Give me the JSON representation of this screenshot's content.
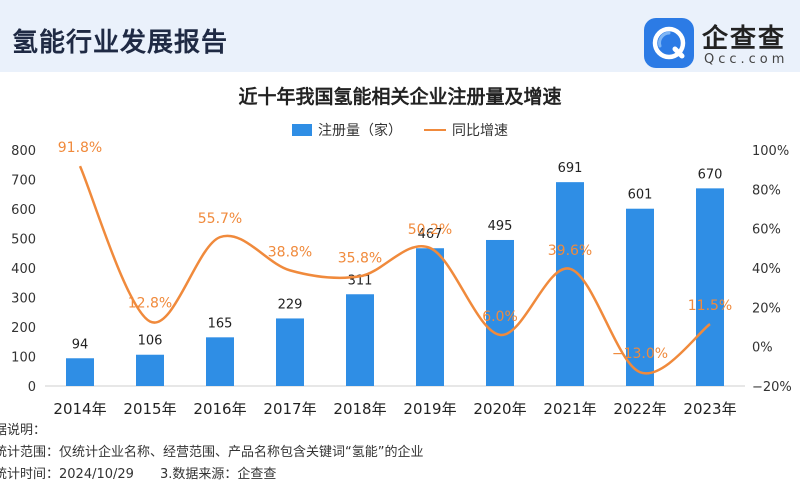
{
  "header": {
    "report_title": "氢能行业发展报告",
    "brand_name": "企查查",
    "brand_domain": "Qcc.com"
  },
  "colors": {
    "bar": "#2f8ee5",
    "line": "#f08a3c",
    "header_bg": "#eaf1fb",
    "brand": "#2c7be5"
  },
  "chart_data": {
    "type": "bar",
    "title": "近十年我国氢能相关企业注册量及增速",
    "categories": [
      "2014年",
      "2015年",
      "2016年",
      "2017年",
      "2018年",
      "2019年",
      "2020年",
      "2021年",
      "2022年",
      "2023年"
    ],
    "series": [
      {
        "name": "注册量（家）",
        "type": "bar",
        "axis": "left",
        "values": [
          94,
          106,
          165,
          229,
          311,
          467,
          495,
          691,
          601,
          670
        ],
        "labels": [
          "94",
          "106",
          "165",
          "229",
          "311",
          "467",
          "495",
          "691",
          "601",
          "670"
        ]
      },
      {
        "name": "同比增速",
        "type": "line",
        "axis": "right",
        "values": [
          91.8,
          12.8,
          55.7,
          38.8,
          35.8,
          50.2,
          6.0,
          39.6,
          -13.0,
          11.5
        ],
        "labels": [
          "91.8%",
          "12.8%",
          "55.7%",
          "38.8%",
          "35.8%",
          "50.2%",
          "6.0%",
          "39.6%",
          "−13.0%",
          "11.5%"
        ]
      }
    ],
    "left_axis": {
      "min": 0,
      "max": 800,
      "ticks": [
        0,
        100,
        200,
        300,
        400,
        500,
        600,
        700,
        800
      ],
      "tick_labels": [
        "0",
        "100",
        "200",
        "300",
        "400",
        "500",
        "600",
        "700",
        "800"
      ]
    },
    "right_axis": {
      "min": -20,
      "max": 100,
      "ticks": [
        -20,
        0,
        20,
        40,
        60,
        80,
        100
      ],
      "tick_labels": [
        "−20%",
        "0%",
        "20%",
        "40%",
        "60%",
        "80%",
        "100%"
      ]
    },
    "grid": false,
    "legend": "top-center"
  },
  "notes": {
    "heading": "据说明：",
    "scope": "统计范围：仅统计企业名称、经营范围、产品名称包含关键词“氢能”的企业",
    "time": "统计时间：2024/10/29",
    "source": "3.数据来源：企查查"
  }
}
